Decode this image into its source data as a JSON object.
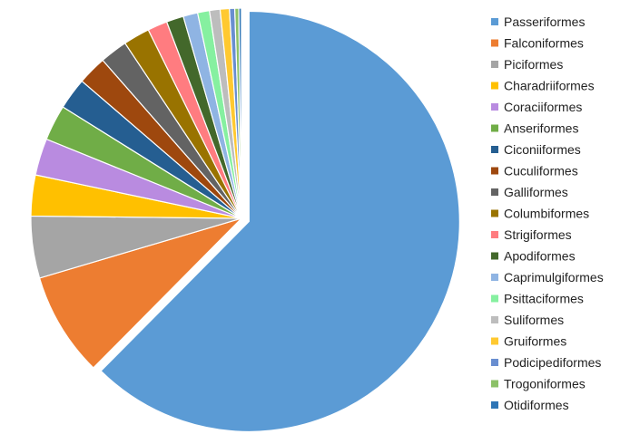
{
  "chart_data": {
    "type": "pie",
    "title": "",
    "legend_position": "right",
    "start_angle_deg": 0,
    "direction": "clockwise",
    "exploded_first_slice": true,
    "series": [
      {
        "categories": [
          "Passeriformes",
          "Falconiformes",
          "Piciformes",
          "Charadriiformes",
          "Coraciiformes",
          "Anseriformes",
          "Ciconiiformes",
          "Cuculiformes",
          "Galliformes",
          "Columbiformes",
          "Strigiformes",
          "Apodiformes",
          "Caprimulgiformes",
          "Psittaciformes",
          "Suliformes",
          "Gruiformes",
          "Podicipediformes",
          "Trogoniformes",
          "Otidiformes"
        ],
        "values": [
          61.6,
          7.9,
          4.7,
          3.1,
          2.8,
          2.7,
          2.4,
          2.2,
          2.1,
          2.0,
          1.5,
          1.3,
          1.1,
          0.9,
          0.8,
          0.7,
          0.4,
          0.3,
          0.2
        ],
        "colors": [
          "#5B9BD5",
          "#ED7D31",
          "#A5A5A5",
          "#FFC000",
          "#B98BE0",
          "#70AD47",
          "#255E91",
          "#9E480E",
          "#636363",
          "#997300",
          "#FF7C80",
          "#43682B",
          "#8FB4E3",
          "#86F0A0",
          "#BDBDBD",
          "#FFC930",
          "#698ED0",
          "#8CC168",
          "#2E75B6"
        ]
      }
    ]
  }
}
